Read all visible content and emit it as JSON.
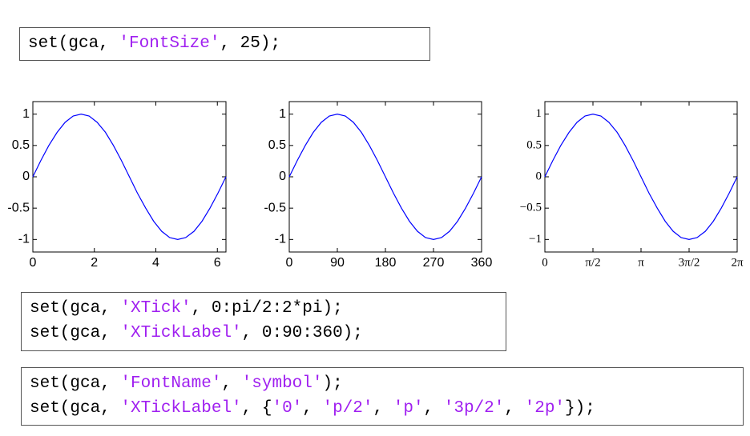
{
  "code_blocks": [
    {
      "lines": [
        [
          "set(gca, ",
          "'FontSize'",
          ", 25);"
        ]
      ]
    },
    {
      "lines": [
        [
          "set(gca, ",
          "'XTick'",
          ", 0:pi/2:2*pi);"
        ],
        [
          "set(gca, ",
          "'XTickLabel'",
          ", 0:90:360);"
        ]
      ]
    },
    {
      "lines": [
        [
          "set(gca, ",
          "'FontName'",
          ", ",
          "'symbol'",
          ");"
        ],
        [
          "set(gca, ",
          "'XTickLabel'",
          ", {",
          "'0'",
          ", ",
          "'p/2'",
          ", ",
          "'p'",
          ", ",
          "'3p/2'",
          ", ",
          "'2p'",
          "});"
        ]
      ]
    }
  ],
  "chart_data": [
    {
      "type": "line",
      "color": "#0000ff",
      "x": [
        0,
        0.26,
        0.52,
        0.79,
        1.05,
        1.31,
        1.57,
        1.83,
        2.09,
        2.36,
        2.62,
        2.88,
        3.14,
        3.4,
        3.67,
        3.93,
        4.19,
        4.45,
        4.71,
        4.97,
        5.24,
        5.5,
        5.76,
        6.02,
        6.28
      ],
      "values": [
        0,
        0.26,
        0.5,
        0.71,
        0.87,
        0.97,
        1,
        0.97,
        0.87,
        0.71,
        0.5,
        0.26,
        0,
        -0.26,
        -0.5,
        -0.71,
        -0.87,
        -0.97,
        -1,
        -0.97,
        -0.87,
        -0.71,
        -0.5,
        -0.26,
        0
      ],
      "xlim": [
        0,
        6.28
      ],
      "xticks": [
        0,
        2,
        4,
        6
      ],
      "ylim": [
        -1.2,
        1.2
      ],
      "yticks": [
        -1,
        -0.5,
        0,
        0.5,
        1
      ]
    },
    {
      "type": "line",
      "color": "#0000ff",
      "x": [
        0,
        15,
        30,
        45,
        60,
        75,
        90,
        105,
        120,
        135,
        150,
        165,
        180,
        195,
        210,
        225,
        240,
        255,
        270,
        285,
        300,
        315,
        330,
        345,
        360
      ],
      "values": [
        0,
        0.26,
        0.5,
        0.71,
        0.87,
        0.97,
        1,
        0.97,
        0.87,
        0.71,
        0.5,
        0.26,
        0,
        -0.26,
        -0.5,
        -0.71,
        -0.87,
        -0.97,
        -1,
        -0.97,
        -0.87,
        -0.71,
        -0.5,
        -0.26,
        0
      ],
      "xlim": [
        0,
        360
      ],
      "xticks": [
        0,
        90,
        180,
        270,
        360
      ],
      "ylim": [
        -1.2,
        1.2
      ],
      "yticks": [
        -1,
        -0.5,
        0,
        0.5,
        1
      ]
    },
    {
      "type": "line",
      "color": "#0000ff",
      "x": [
        0,
        0.26,
        0.52,
        0.79,
        1.05,
        1.31,
        1.57,
        1.83,
        2.09,
        2.36,
        2.62,
        2.88,
        3.14,
        3.4,
        3.67,
        3.93,
        4.19,
        4.45,
        4.71,
        4.97,
        5.24,
        5.5,
        5.76,
        6.02,
        6.28
      ],
      "values": [
        0,
        0.26,
        0.5,
        0.71,
        0.87,
        0.97,
        1,
        0.97,
        0.87,
        0.71,
        0.5,
        0.26,
        0,
        -0.26,
        -0.5,
        -0.71,
        -0.87,
        -0.97,
        -1,
        -0.97,
        -0.87,
        -0.71,
        -0.5,
        -0.26,
        0
      ],
      "xlim": [
        0,
        6.28
      ],
      "xticks": [
        0,
        {
          "value": 1.57,
          "label": "π/2"
        },
        {
          "value": 3.14,
          "label": "π"
        },
        {
          "value": 4.71,
          "label": "3π/2"
        },
        {
          "value": 6.28,
          "label": "2π"
        }
      ],
      "ylim": [
        -1.2,
        1.2
      ],
      "yticks": [
        {
          "value": -1,
          "label": "−1"
        },
        {
          "value": -0.5,
          "label": "−0.5"
        },
        0,
        0.5,
        1
      ]
    }
  ]
}
